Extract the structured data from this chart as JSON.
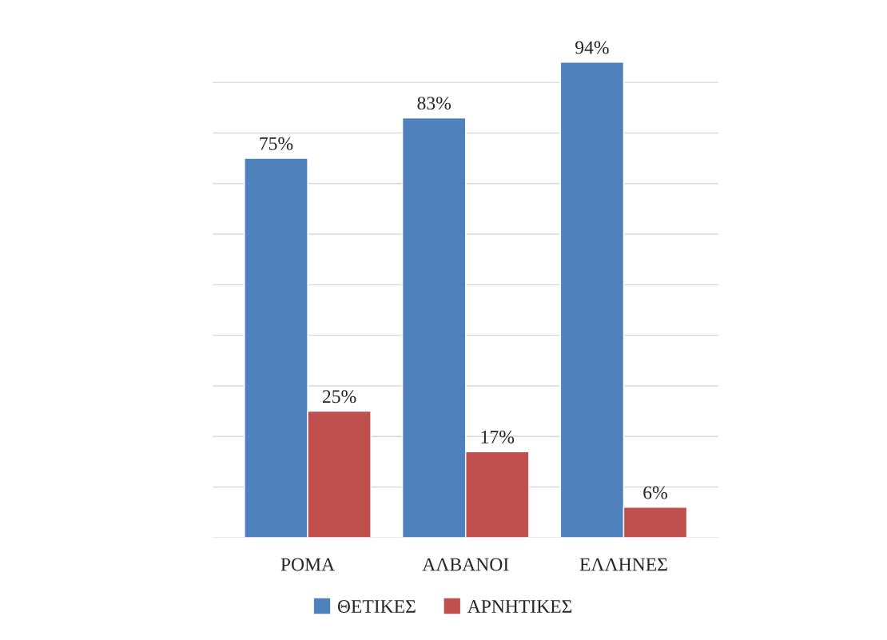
{
  "chart_data": {
    "type": "bar",
    "categories": [
      "ΡΟΜΑ",
      "ΑΛΒΑΝΟΙ",
      "ΕΛΛΗΝΕΣ"
    ],
    "series": [
      {
        "name": "ΘΕΤΙΚΕΣ",
        "color": "#4f81bd",
        "values": [
          75,
          83,
          94
        ],
        "value_labels": [
          "75%",
          "83%",
          "94%"
        ]
      },
      {
        "name": "ΑΡΝΗΤΙΚΕΣ",
        "color": "#c0504d",
        "values": [
          25,
          17,
          6
        ],
        "value_labels": [
          "25%",
          "17%",
          "6%"
        ]
      }
    ],
    "tick_labels": "x",
    "grid": "y",
    "legend": "bottom"
  }
}
